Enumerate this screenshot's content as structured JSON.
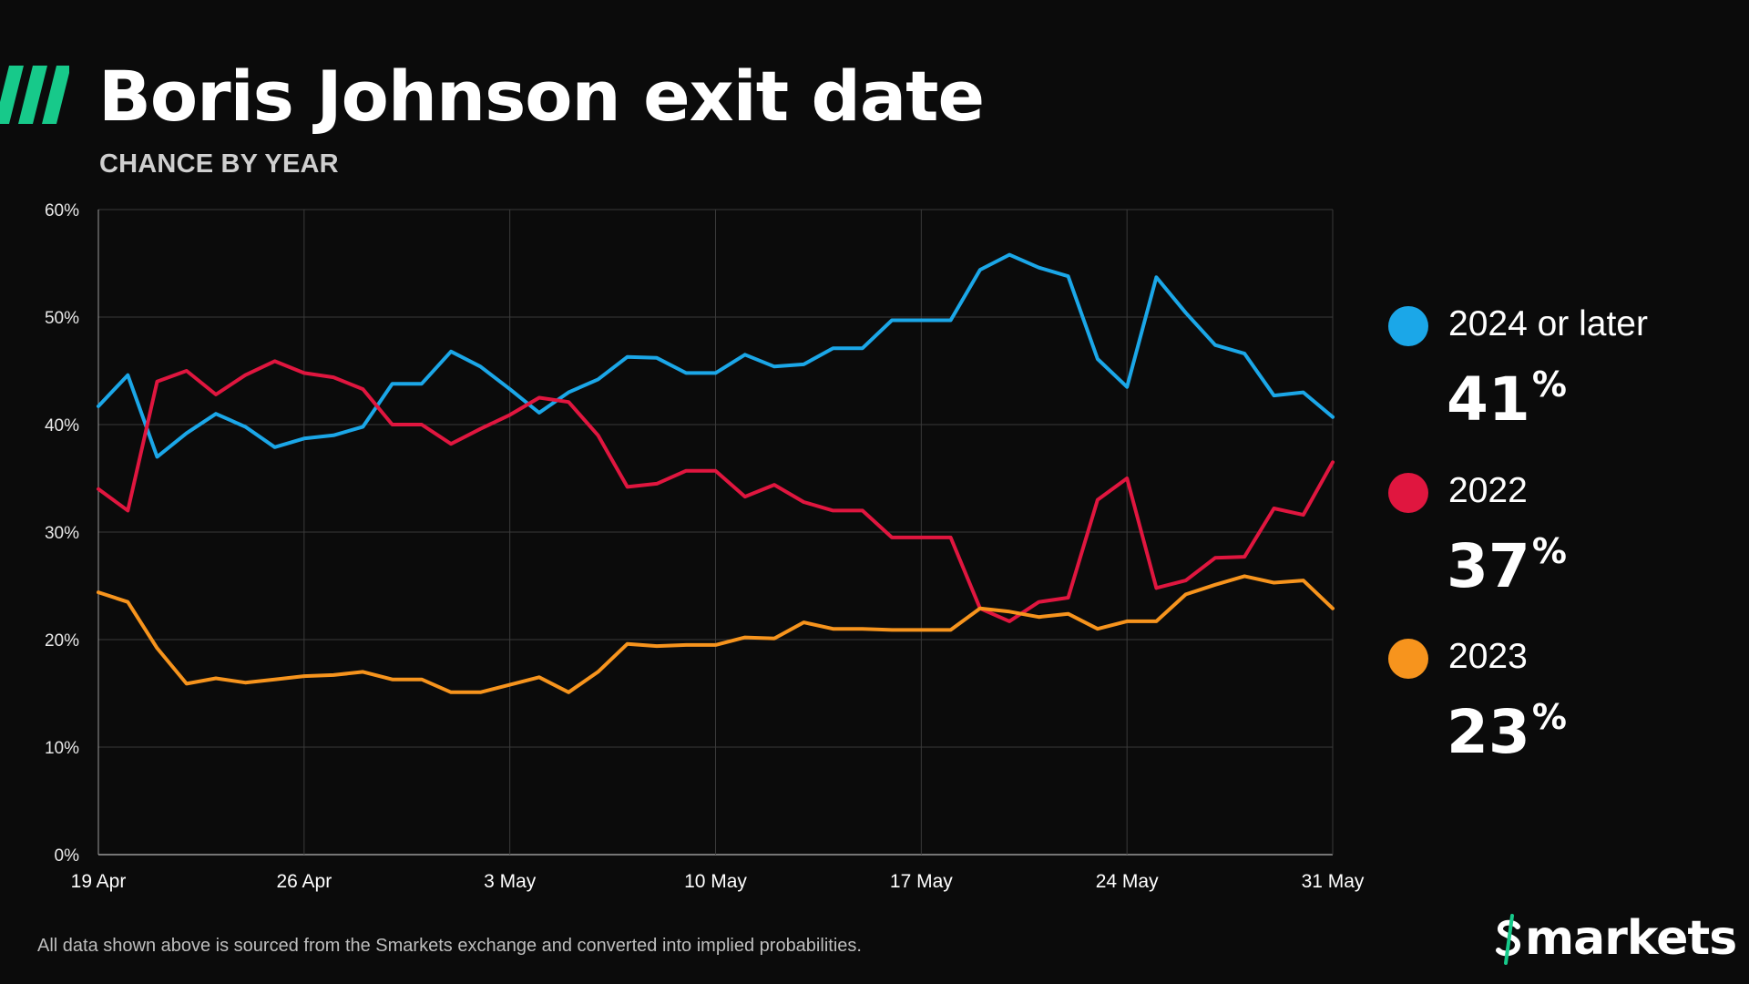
{
  "header": {
    "title": "Boris Johnson exit date",
    "subtitle": "CHANCE BY YEAR"
  },
  "colors": {
    "background": "#0b0b0b",
    "brand_green": "#17c98a",
    "grid": "#3a3a3a"
  },
  "legend": {
    "items": [
      {
        "name": "2024 or later",
        "value": "41",
        "unit": "%",
        "color": "#1ba7e8"
      },
      {
        "name": "2022",
        "value": "37",
        "unit": "%",
        "color": "#e0163f"
      },
      {
        "name": "2023",
        "value": "23",
        "unit": "%",
        "color": "#f7941d"
      }
    ]
  },
  "footnote": "All data shown above is sourced from the Smarkets exchange and converted into implied probabilities.",
  "logo": {
    "text": "smarkets"
  },
  "chart_data": {
    "type": "line",
    "title": "Boris Johnson exit date",
    "subtitle": "CHANCE BY YEAR",
    "xlabel": "",
    "ylabel": "",
    "x_range": [
      "19 Apr",
      "31 May"
    ],
    "x_ticks": [
      "19 Apr",
      "26 Apr",
      "3 May",
      "10 May",
      "17 May",
      "24 May",
      "31 May"
    ],
    "y_ticks": [
      "0%",
      "10%",
      "20%",
      "30%",
      "40%",
      "50%",
      "60%"
    ],
    "ylim": [
      0,
      60
    ],
    "grid": true,
    "legend_placement": "right",
    "series": [
      {
        "name": "2024 or later",
        "color": "#1ba7e8",
        "values": [
          41.7,
          44.6,
          37.0,
          39.2,
          41.0,
          39.8,
          37.9,
          38.7,
          39.0,
          39.8,
          43.8,
          43.8,
          46.8,
          45.4,
          43.3,
          41.1,
          43.0,
          44.2,
          46.3,
          46.2,
          44.8,
          44.8,
          46.5,
          45.4,
          45.6,
          47.1,
          47.1,
          49.7,
          49.7,
          49.7,
          54.4,
          55.8,
          54.6,
          53.8,
          46.1,
          43.5,
          53.7,
          50.4,
          47.4,
          46.6,
          42.7,
          43.0,
          40.7
        ]
      },
      {
        "name": "2022",
        "color": "#e0163f",
        "values": [
          34.0,
          32.0,
          44.0,
          45.0,
          42.8,
          44.6,
          45.9,
          44.8,
          44.4,
          43.3,
          40.0,
          40.0,
          38.2,
          39.6,
          40.9,
          42.5,
          42.1,
          39.0,
          34.2,
          34.5,
          35.7,
          35.7,
          33.3,
          34.4,
          32.8,
          32.0,
          32.0,
          29.5,
          29.5,
          29.5,
          22.9,
          21.7,
          23.5,
          23.9,
          33.0,
          35.0,
          24.8,
          25.5,
          27.6,
          27.7,
          32.2,
          31.6,
          36.5
        ]
      },
      {
        "name": "2023",
        "color": "#f7941d",
        "values": [
          24.4,
          23.5,
          19.2,
          15.9,
          16.4,
          16.0,
          16.3,
          16.6,
          16.7,
          17.0,
          16.3,
          16.3,
          15.1,
          15.1,
          15.8,
          16.5,
          15.1,
          17.0,
          19.6,
          19.4,
          19.5,
          19.5,
          20.2,
          20.1,
          21.6,
          21.0,
          21.0,
          20.9,
          20.9,
          20.9,
          22.9,
          22.6,
          22.1,
          22.4,
          21.0,
          21.7,
          21.7,
          24.2,
          25.1,
          25.9,
          25.3,
          25.5,
          22.9
        ]
      }
    ]
  }
}
